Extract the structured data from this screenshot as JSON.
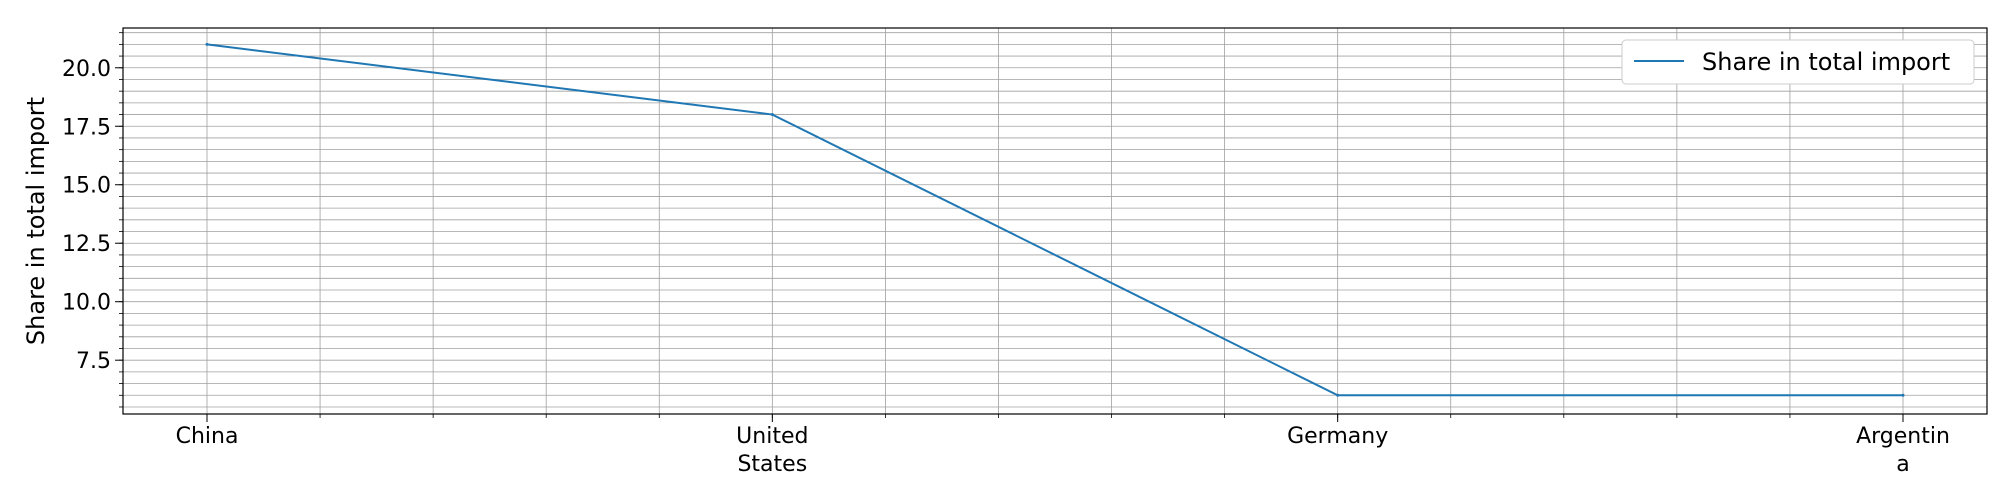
{
  "chart_data": {
    "type": "line",
    "categories": [
      "China",
      "United States",
      "Germany",
      "Argentina"
    ],
    "category_display": [
      [
        "China"
      ],
      [
        "United",
        "States"
      ],
      [
        "Germany"
      ],
      [
        "Argentin",
        "a"
      ]
    ],
    "series": [
      {
        "name": "Share in total import",
        "values": [
          21.0,
          18.0,
          6.0,
          6.0
        ],
        "color": "#1f77b4"
      }
    ],
    "ylabel": "Share in total import",
    "ylim": [
      5.2,
      21.7
    ],
    "yticks": [
      7.5,
      10.0,
      12.5,
      15.0,
      17.5,
      20.0
    ],
    "ytick_labels": [
      "7.5",
      "10.0",
      "12.5",
      "15.0",
      "17.5",
      "20.0"
    ],
    "grid": true,
    "legend_position": "top-right"
  }
}
